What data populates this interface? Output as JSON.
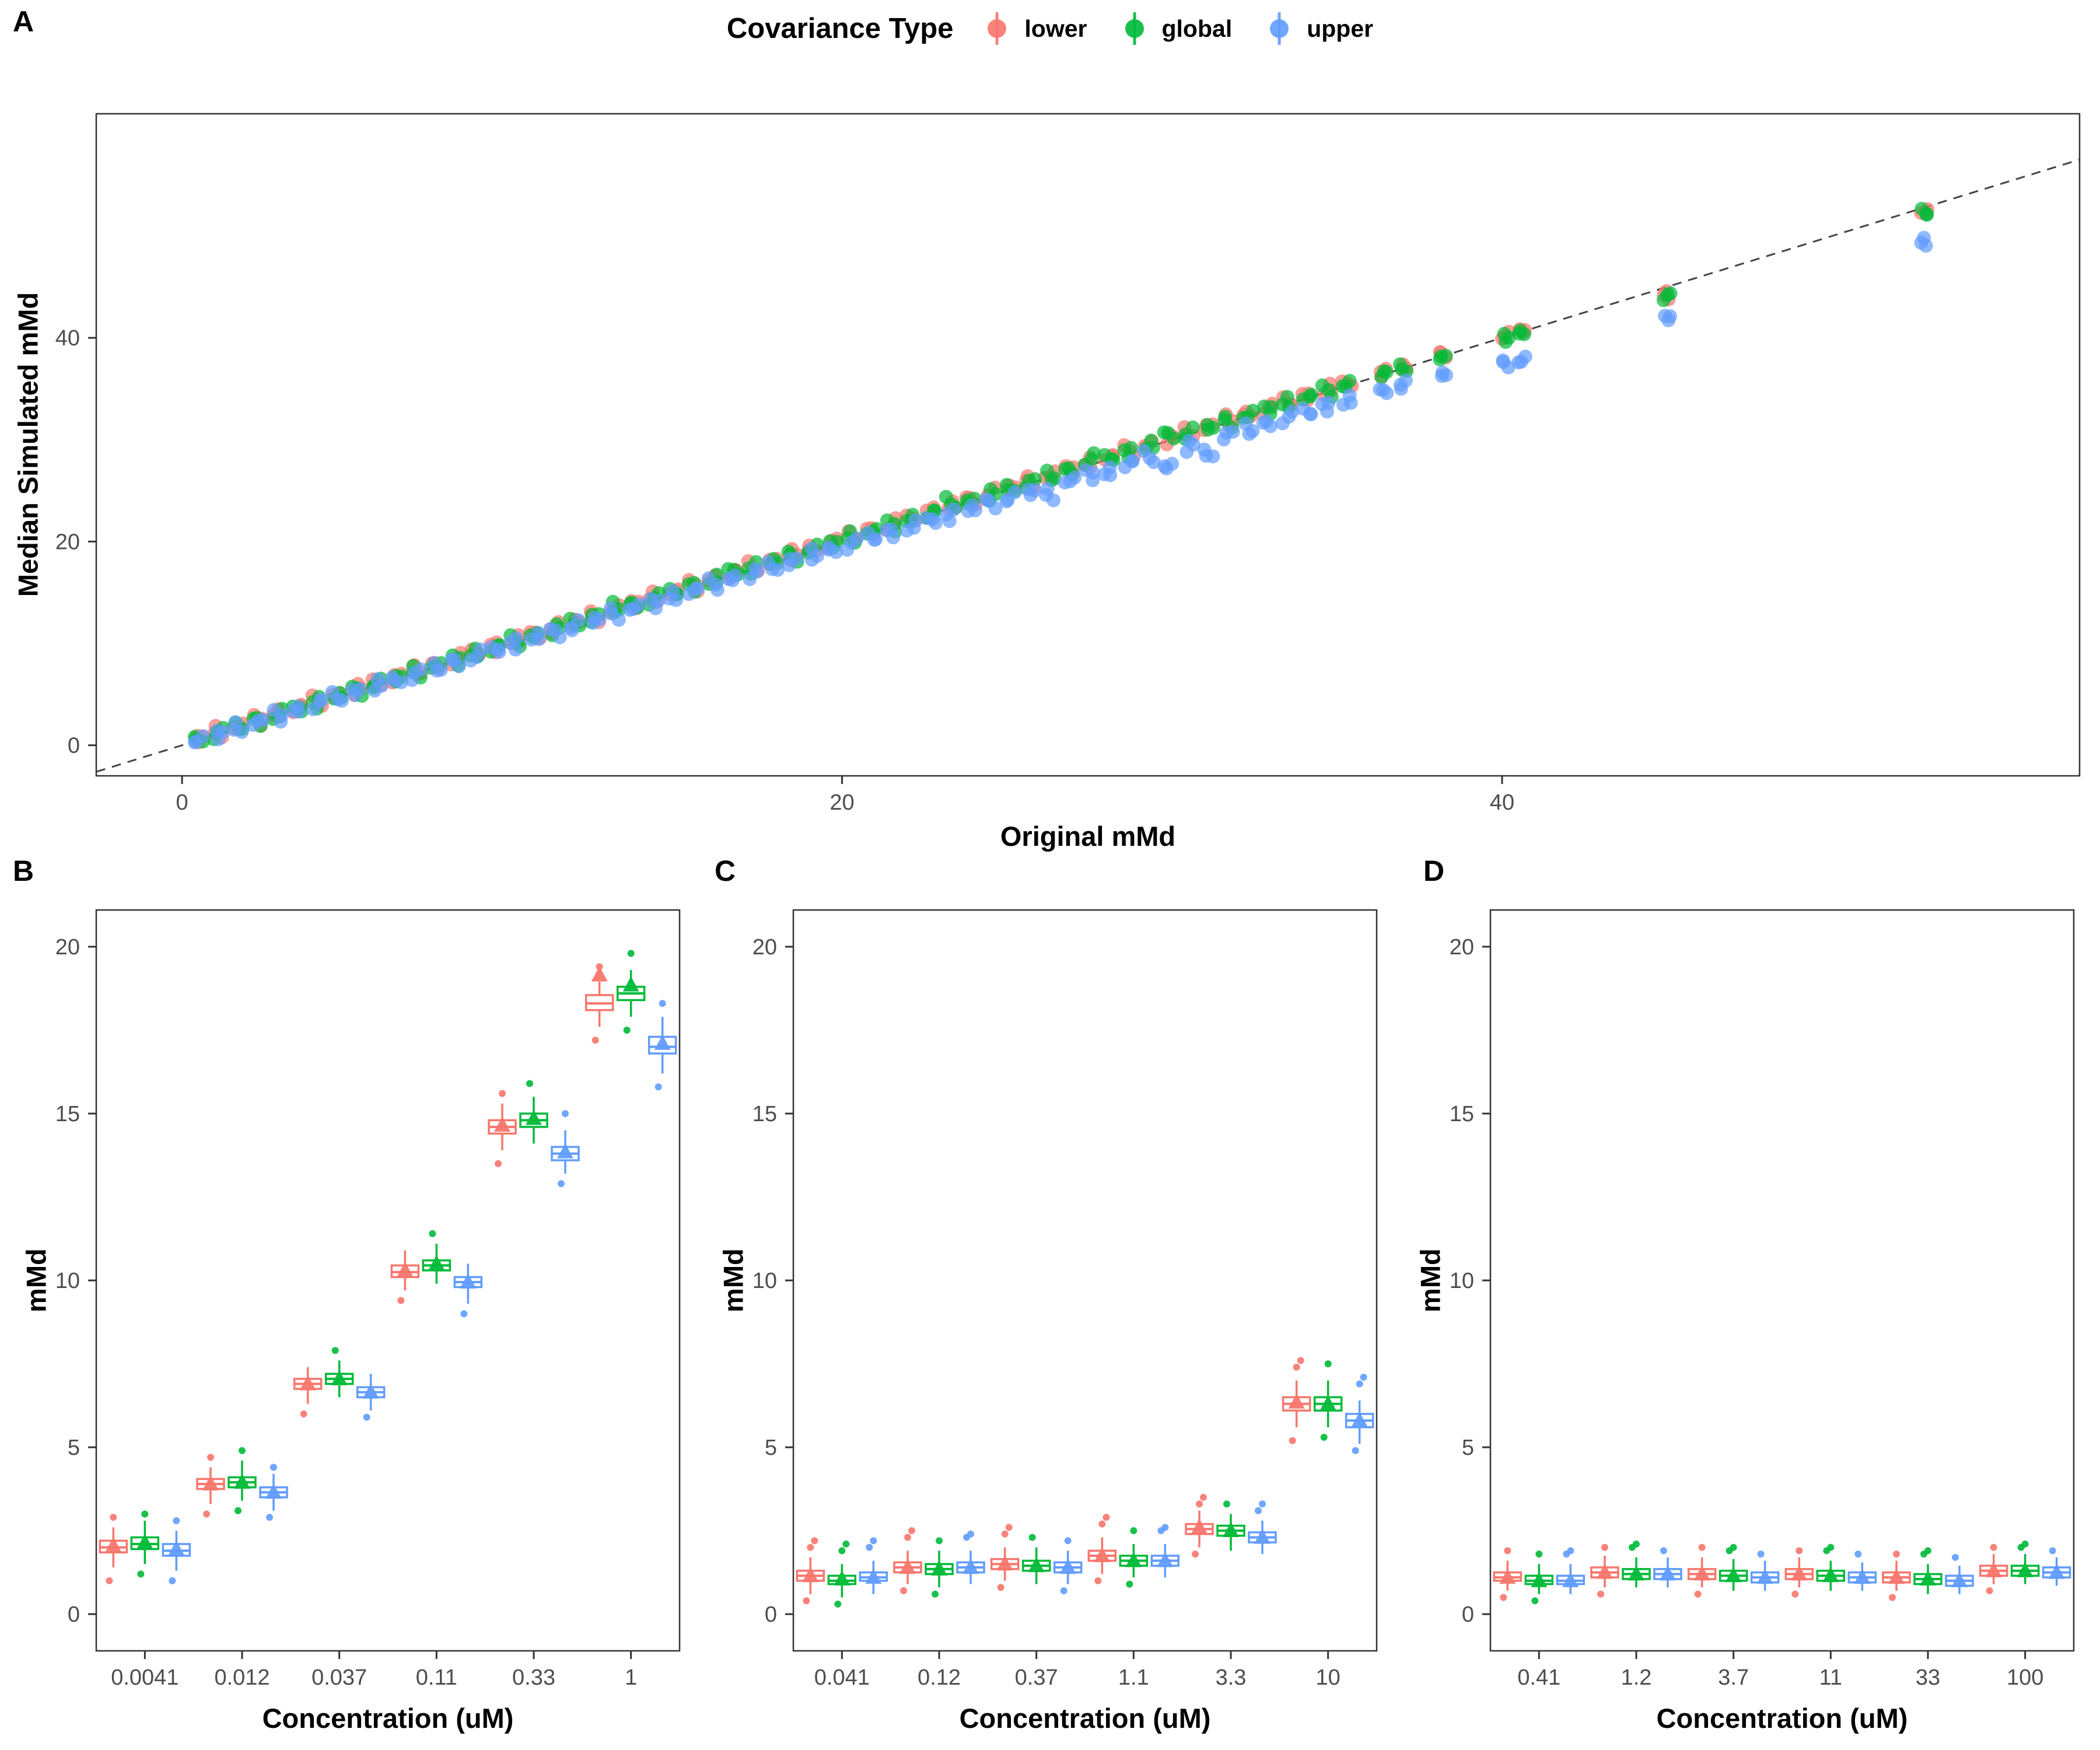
{
  "legend": {
    "title": "Covariance Type",
    "items": [
      {
        "label": "lower",
        "color": "#F8766D"
      },
      {
        "label": "global",
        "color": "#00BA38"
      },
      {
        "label": "upper",
        "color": "#619CFF"
      }
    ]
  },
  "chart_data": [
    {
      "id": "A",
      "letter": "A",
      "type": "scatter",
      "xlabel": "Original mMd",
      "ylabel": "Median Simulated mMd",
      "x_ticks": [
        "0",
        "20",
        "40"
      ],
      "y_ticks": [
        "0",
        "20",
        "40"
      ],
      "xlim": [
        -2.6,
        57.5
      ],
      "ylim": [
        -3,
        62
      ],
      "identity_line": true,
      "x": [
        0.5,
        1.1,
        1.7,
        2.3,
        2.9,
        3.5,
        4.1,
        4.7,
        5.3,
        5.9,
        6.5,
        7.1,
        7.7,
        8.3,
        8.9,
        9.5,
        10.1,
        10.7,
        11.3,
        11.9,
        12.5,
        13.1,
        13.7,
        14.3,
        14.9,
        15.5,
        16.1,
        16.7,
        17.3,
        17.9,
        18.5,
        19.1,
        19.7,
        20.3,
        20.9,
        21.5,
        22.1,
        22.7,
        23.3,
        23.9,
        24.5,
        25.1,
        25.7,
        26.3,
        26.9,
        27.5,
        28.1,
        28.7,
        29.3,
        29.9,
        30.5,
        31.1,
        31.7,
        32.3,
        32.9,
        33.5,
        34.1,
        34.7,
        35.3,
        36.4,
        37.0,
        38.2,
        40.1,
        40.6,
        45.0,
        52.8
      ],
      "series": [
        {
          "name": "lower",
          "color": "#F8766D",
          "y": [
            0.7,
            1.3,
            1.9,
            2.5,
            3.1,
            3.7,
            4.3,
            4.9,
            5.5,
            6.1,
            6.7,
            7.3,
            7.9,
            8.5,
            9.1,
            9.7,
            10.3,
            10.9,
            11.5,
            12.1,
            12.7,
            13.3,
            13.9,
            14.5,
            15.1,
            15.7,
            16.3,
            16.9,
            17.5,
            18.1,
            18.7,
            19.3,
            19.9,
            20.5,
            21.1,
            21.7,
            22.3,
            22.9,
            23.5,
            24.1,
            24.7,
            25.3,
            25.9,
            26.5,
            27.1,
            27.7,
            28.3,
            28.9,
            29.5,
            30.1,
            30.7,
            31.3,
            31.9,
            32.5,
            33.1,
            33.7,
            34.3,
            34.9,
            35.5,
            36.6,
            37.1,
            38.4,
            40.2,
            40.7,
            44.2,
            52.4
          ]
        },
        {
          "name": "global",
          "color": "#00BA38",
          "y": [
            0.6,
            1.2,
            1.8,
            2.4,
            3.0,
            3.6,
            4.2,
            4.8,
            5.4,
            6.0,
            6.6,
            7.2,
            7.8,
            8.4,
            9.0,
            9.6,
            10.2,
            10.8,
            11.4,
            12.0,
            12.6,
            13.5,
            13.8,
            14.4,
            15.0,
            15.6,
            16.2,
            17.1,
            17.4,
            18.0,
            18.6,
            19.2,
            19.8,
            20.4,
            21.0,
            21.6,
            22.2,
            22.8,
            23.8,
            24.0,
            24.6,
            25.2,
            25.8,
            26.4,
            27.0,
            28.1,
            28.2,
            28.8,
            29.4,
            30.5,
            30.6,
            31.2,
            31.8,
            32.4,
            33.0,
            33.6,
            34.2,
            34.8,
            35.4,
            36.5,
            37.0,
            38.1,
            40.0,
            40.5,
            44.1,
            52.3
          ]
        },
        {
          "name": "upper",
          "color": "#619CFF",
          "y": [
            0.5,
            1.1,
            1.7,
            2.3,
            2.9,
            3.5,
            4.1,
            4.7,
            5.3,
            5.9,
            6.4,
            7.0,
            7.6,
            8.2,
            8.8,
            9.4,
            10.0,
            10.6,
            11.1,
            11.7,
            12.3,
            12.9,
            13.5,
            14.0,
            14.6,
            15.2,
            15.8,
            16.4,
            16.9,
            17.5,
            18.1,
            18.7,
            19.2,
            19.8,
            20.4,
            20.9,
            21.5,
            22.1,
            22.6,
            23.2,
            23.8,
            24.3,
            24.9,
            24.6,
            26.0,
            26.6,
            26.8,
            27.7,
            28.3,
            27.4,
            29.4,
            28.6,
            30.5,
            31.0,
            31.6,
            32.2,
            32.7,
            33.3,
            33.8,
            34.8,
            35.4,
            36.4,
            37.5,
            37.8,
            42.0,
            49.4
          ]
        }
      ]
    },
    {
      "id": "B",
      "letter": "B",
      "type": "boxplot",
      "xlabel": "Concentration (uM)",
      "ylabel": "mMd",
      "categories": [
        "0.0041",
        "0.012",
        "0.037",
        "0.11",
        "0.33",
        "1"
      ],
      "y_ticks": [
        "0",
        "5",
        "10",
        "15",
        "20"
      ],
      "ylim": [
        -1.1,
        21.1
      ],
      "box_format": [
        "whisker_low",
        "q1",
        "median",
        "q3",
        "whisker_high",
        "mean",
        "outliers"
      ],
      "series": [
        {
          "name": "lower",
          "color": "#F8766D",
          "boxes": [
            [
              1.4,
              1.85,
              2.0,
              2.2,
              2.6,
              2.05,
              [
                1.0,
                2.9
              ]
            ],
            [
              3.3,
              3.75,
              3.9,
              4.05,
              4.4,
              3.9,
              [
                3.0,
                4.7
              ]
            ],
            [
              6.3,
              6.75,
              6.9,
              7.05,
              7.4,
              6.9,
              [
                6.0
              ]
            ],
            [
              9.7,
              10.1,
              10.25,
              10.45,
              10.9,
              10.3,
              [
                9.4
              ]
            ],
            [
              13.9,
              14.4,
              14.6,
              14.8,
              15.3,
              14.65,
              [
                13.5,
                15.6
              ]
            ],
            [
              17.6,
              18.1,
              18.3,
              18.55,
              18.95,
              19.15,
              [
                17.2,
                19.4
              ]
            ]
          ]
        },
        {
          "name": "global",
          "color": "#00BA38",
          "boxes": [
            [
              1.5,
              1.95,
              2.1,
              2.3,
              2.8,
              2.15,
              [
                1.2,
                3.0
              ]
            ],
            [
              3.4,
              3.8,
              3.95,
              4.1,
              4.6,
              3.95,
              [
                3.1,
                4.9
              ]
            ],
            [
              6.5,
              6.9,
              7.05,
              7.2,
              7.6,
              7.05,
              [
                7.9
              ]
            ],
            [
              9.9,
              10.3,
              10.45,
              10.6,
              11.1,
              10.5,
              [
                11.4
              ]
            ],
            [
              14.1,
              14.6,
              14.8,
              15.0,
              15.5,
              14.85,
              [
                15.9
              ]
            ],
            [
              17.9,
              18.4,
              18.6,
              18.8,
              19.3,
              18.85,
              [
                17.5,
                19.8
              ]
            ]
          ]
        },
        {
          "name": "upper",
          "color": "#619CFF",
          "boxes": [
            [
              1.3,
              1.75,
              1.9,
              2.1,
              2.5,
              1.95,
              [
                1.0,
                2.8
              ]
            ],
            [
              3.1,
              3.5,
              3.65,
              3.8,
              4.2,
              3.65,
              [
                2.9,
                4.4
              ]
            ],
            [
              6.1,
              6.5,
              6.65,
              6.8,
              7.2,
              6.65,
              [
                5.9
              ]
            ],
            [
              9.3,
              9.8,
              9.95,
              10.1,
              10.5,
              9.95,
              [
                9.0
              ]
            ],
            [
              13.2,
              13.6,
              13.8,
              14.0,
              14.5,
              13.85,
              [
                12.9,
                15.0
              ]
            ],
            [
              16.2,
              16.8,
              17.0,
              17.3,
              17.9,
              17.1,
              [
                15.8,
                18.3
              ]
            ]
          ]
        }
      ]
    },
    {
      "id": "C",
      "letter": "C",
      "type": "boxplot",
      "xlabel": "Concentration (uM)",
      "ylabel": "mMd",
      "categories": [
        "0.041",
        "0.12",
        "0.37",
        "1.1",
        "3.3",
        "10"
      ],
      "y_ticks": [
        "0",
        "5",
        "10",
        "15",
        "20"
      ],
      "ylim": [
        -1.1,
        21.1
      ],
      "box_format": [
        "whisker_low",
        "q1",
        "median",
        "q3",
        "whisker_high",
        "mean",
        "outliers"
      ],
      "series": [
        {
          "name": "lower",
          "color": "#F8766D",
          "boxes": [
            [
              0.6,
              1.0,
              1.15,
              1.3,
              1.7,
              1.15,
              [
                0.4,
                2.0,
                2.2
              ]
            ],
            [
              0.9,
              1.25,
              1.4,
              1.55,
              1.9,
              1.4,
              [
                0.7,
                2.3,
                2.5
              ]
            ],
            [
              1.0,
              1.35,
              1.5,
              1.65,
              2.0,
              1.5,
              [
                0.8,
                2.4,
                2.6
              ]
            ],
            [
              1.2,
              1.6,
              1.75,
              1.9,
              2.3,
              1.75,
              [
                1.0,
                2.7,
                2.9
              ]
            ],
            [
              2.0,
              2.4,
              2.55,
              2.7,
              3.1,
              2.6,
              [
                1.8,
                3.3,
                3.5
              ]
            ],
            [
              5.6,
              6.1,
              6.3,
              6.5,
              7.0,
              6.35,
              [
                5.2,
                7.4,
                7.6
              ]
            ]
          ]
        },
        {
          "name": "global",
          "color": "#00BA38",
          "boxes": [
            [
              0.5,
              0.9,
              1.0,
              1.15,
              1.5,
              1.05,
              [
                0.3,
                1.9,
                2.1
              ]
            ],
            [
              0.8,
              1.2,
              1.35,
              1.5,
              1.9,
              1.35,
              [
                0.6,
                2.2
              ]
            ],
            [
              0.9,
              1.3,
              1.45,
              1.6,
              2.0,
              1.45,
              [
                2.3
              ]
            ],
            [
              1.1,
              1.45,
              1.6,
              1.75,
              2.1,
              1.6,
              [
                0.9,
                2.5
              ]
            ],
            [
              1.9,
              2.35,
              2.5,
              2.65,
              3.0,
              2.5,
              [
                3.3
              ]
            ],
            [
              5.6,
              6.1,
              6.3,
              6.5,
              7.0,
              6.3,
              [
                5.3,
                7.5
              ]
            ]
          ]
        },
        {
          "name": "upper",
          "color": "#619CFF",
          "boxes": [
            [
              0.6,
              1.0,
              1.1,
              1.25,
              1.6,
              1.1,
              [
                2.0,
                2.2
              ]
            ],
            [
              0.9,
              1.25,
              1.4,
              1.55,
              1.9,
              1.4,
              [
                2.3,
                2.4
              ]
            ],
            [
              0.9,
              1.25,
              1.4,
              1.55,
              1.9,
              1.4,
              [
                0.7,
                2.2
              ]
            ],
            [
              1.1,
              1.45,
              1.6,
              1.75,
              2.1,
              1.6,
              [
                2.5,
                2.6
              ]
            ],
            [
              1.8,
              2.15,
              2.3,
              2.45,
              2.8,
              2.3,
              [
                3.1,
                3.3
              ]
            ],
            [
              5.1,
              5.6,
              5.8,
              6.0,
              6.4,
              5.8,
              [
                4.9,
                6.9,
                7.1
              ]
            ]
          ]
        }
      ]
    },
    {
      "id": "D",
      "letter": "D",
      "type": "boxplot",
      "xlabel": "Concentration (uM)",
      "ylabel": "mMd",
      "categories": [
        "0.41",
        "1.2",
        "3.7",
        "11",
        "33",
        "100"
      ],
      "y_ticks": [
        "0",
        "5",
        "10",
        "15",
        "20"
      ],
      "ylim": [
        -1.1,
        21.1
      ],
      "box_format": [
        "whisker_low",
        "q1",
        "median",
        "q3",
        "whisker_high",
        "mean",
        "outliers"
      ],
      "series": [
        {
          "name": "lower",
          "color": "#F8766D",
          "boxes": [
            [
              0.7,
              1.0,
              1.1,
              1.25,
              1.6,
              1.1,
              [
                0.5,
                1.9
              ]
            ],
            [
              0.8,
              1.1,
              1.25,
              1.4,
              1.75,
              1.25,
              [
                0.6,
                2.0
              ]
            ],
            [
              0.8,
              1.05,
              1.2,
              1.35,
              1.7,
              1.2,
              [
                0.6,
                2.0
              ]
            ],
            [
              0.8,
              1.05,
              1.2,
              1.35,
              1.7,
              1.2,
              [
                0.6,
                1.9
              ]
            ],
            [
              0.7,
              0.95,
              1.1,
              1.25,
              1.6,
              1.1,
              [
                0.5,
                1.8
              ]
            ],
            [
              0.9,
              1.15,
              1.3,
              1.45,
              1.8,
              1.3,
              [
                0.7,
                2.0
              ]
            ]
          ]
        },
        {
          "name": "global",
          "color": "#00BA38",
          "boxes": [
            [
              0.6,
              0.9,
              1.0,
              1.15,
              1.5,
              1.0,
              [
                0.4,
                1.8
              ]
            ],
            [
              0.8,
              1.05,
              1.2,
              1.35,
              1.7,
              1.2,
              [
                2.0,
                2.1
              ]
            ],
            [
              0.7,
              1.0,
              1.15,
              1.3,
              1.65,
              1.15,
              [
                1.9,
                2.0
              ]
            ],
            [
              0.7,
              1.0,
              1.15,
              1.3,
              1.6,
              1.15,
              [
                1.9,
                2.0
              ]
            ],
            [
              0.6,
              0.9,
              1.05,
              1.2,
              1.5,
              1.05,
              [
                1.8,
                1.9
              ]
            ],
            [
              0.9,
              1.15,
              1.3,
              1.45,
              1.8,
              1.3,
              [
                2.0,
                2.1
              ]
            ]
          ]
        },
        {
          "name": "upper",
          "color": "#619CFF",
          "boxes": [
            [
              0.6,
              0.9,
              1.0,
              1.15,
              1.5,
              1.0,
              [
                1.8,
                1.9
              ]
            ],
            [
              0.8,
              1.05,
              1.2,
              1.35,
              1.7,
              1.2,
              [
                1.9
              ]
            ],
            [
              0.7,
              0.95,
              1.1,
              1.25,
              1.6,
              1.1,
              [
                1.8
              ]
            ],
            [
              0.7,
              0.95,
              1.1,
              1.25,
              1.55,
              1.1,
              [
                1.8
              ]
            ],
            [
              0.6,
              0.85,
              1.0,
              1.15,
              1.45,
              1.0,
              [
                1.7
              ]
            ],
            [
              0.85,
              1.1,
              1.25,
              1.4,
              1.7,
              1.25,
              [
                1.9
              ]
            ]
          ]
        }
      ]
    }
  ]
}
